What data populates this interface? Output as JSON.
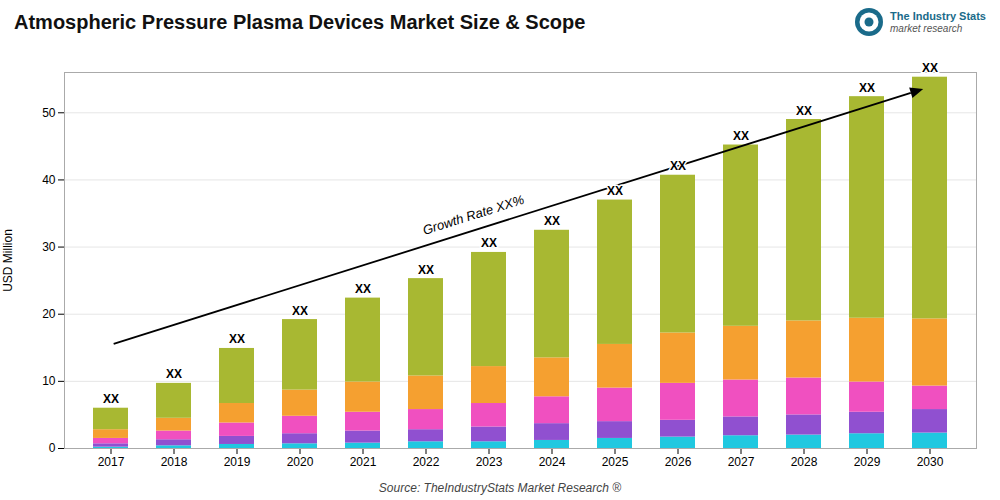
{
  "chart_data": {
    "type": "bar",
    "stacked": true,
    "title": "Atmospheric Pressure Plasma Devices Market Size & Scope",
    "ylabel": "USD Million",
    "categories": [
      "2017",
      "2018",
      "2019",
      "2020",
      "2021",
      "2022",
      "2023",
      "2024",
      "2025",
      "2026",
      "2027",
      "2028",
      "2029",
      "2030"
    ],
    "series": [
      {
        "color": "#20c8e0",
        "values": [
          0.2,
          0.4,
          0.6,
          0.7,
          0.8,
          1.0,
          1.0,
          1.2,
          1.5,
          1.7,
          1.9,
          2.0,
          2.2,
          2.3
        ]
      },
      {
        "color": "#9050d0",
        "values": [
          0.5,
          0.9,
          1.2,
          1.5,
          1.8,
          1.8,
          2.2,
          2.5,
          2.5,
          2.5,
          2.8,
          3.0,
          3.2,
          3.5
        ]
      },
      {
        "color": "#f050c0",
        "values": [
          0.8,
          1.3,
          2.0,
          2.6,
          2.8,
          3.0,
          3.5,
          4.0,
          5.0,
          5.5,
          5.5,
          5.5,
          4.5,
          3.5
        ]
      },
      {
        "color": "#f5a030",
        "values": [
          1.3,
          1.9,
          2.9,
          3.9,
          4.5,
          5.0,
          5.5,
          5.8,
          6.5,
          7.5,
          8.0,
          8.5,
          9.5,
          10.0
        ]
      },
      {
        "color": "#a8b832",
        "values": [
          3.2,
          5.2,
          8.2,
          10.5,
          12.5,
          14.5,
          17.0,
          19.0,
          21.5,
          23.5,
          27.0,
          30.0,
          33.0,
          36.0
        ]
      }
    ],
    "ylim": [
      0,
      56
    ],
    "yticks": [
      0,
      10,
      20,
      30,
      40,
      50
    ],
    "grid": true,
    "bar_annotation": "XX",
    "annotation": "Growth Rate XX%",
    "source": "Source: TheIndustryStats Market Research ®",
    "logo_title": "The Industry Stats",
    "logo_subtitle": "market research"
  }
}
